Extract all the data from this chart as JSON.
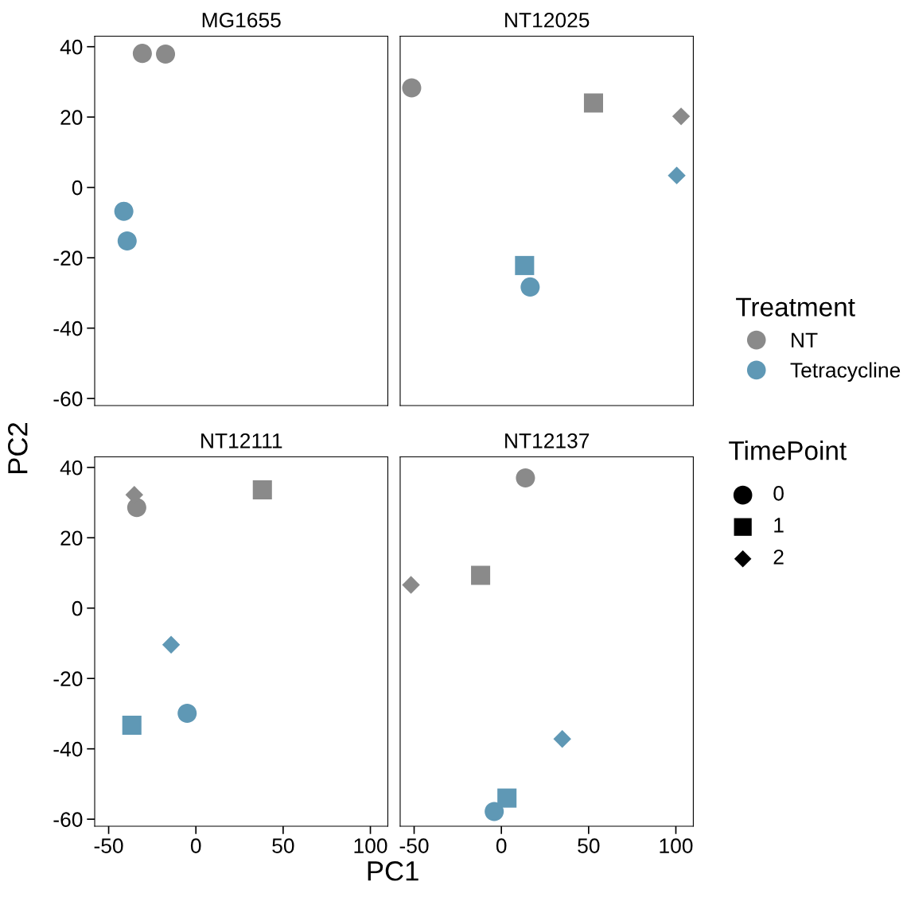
{
  "chart_data": [
    {
      "type": "scatter",
      "title": "MG1655",
      "xlabel": "PC1",
      "ylabel": "PC2",
      "legend": "right",
      "legend_title": "Treatment",
      "annotations": [
        "TimePoint",
        "0",
        "1",
        "2"
      ],
      "xlim": [
        -58,
        110
      ],
      "ylim": [
        -62,
        43
      ],
      "xticks": [
        -50,
        0,
        50,
        100
      ],
      "yticks": [
        -60,
        -40,
        -20,
        0,
        20,
        40
      ],
      "tick_labels": "y",
      "grid": false,
      "series": [
        {
          "name": "NT",
          "color": "#8a8a8a",
          "marker": "circle",
          "x": [
            -30.7,
            -17.4
          ],
          "values": [
            38.1,
            37.9
          ]
        },
        {
          "name": "Tetracycline",
          "color": "#5f98b5",
          "marker": "circle",
          "x": [
            -41.3,
            -39.4
          ],
          "values": [
            -6.8,
            -15.2
          ]
        }
      ]
    },
    {
      "type": "scatter",
      "title": "NT12025",
      "xlim": [
        -58,
        110
      ],
      "ylim": [
        -62,
        43
      ],
      "xticks": [
        -50,
        0,
        50,
        100
      ],
      "yticks": [
        -60,
        -40,
        -20,
        0,
        20,
        40
      ],
      "tick_labels": false,
      "grid": false,
      "series": [
        {
          "color": "#8a8a8a",
          "marker": "circle",
          "x": [
            -51.4
          ],
          "values": [
            28.3
          ]
        },
        {
          "color": "#8a8a8a",
          "marker": "square",
          "x": [
            52.8
          ],
          "values": [
            24
          ]
        },
        {
          "color": "#8a8a8a",
          "marker": "diamond",
          "x": [
            103
          ],
          "values": [
            20.2
          ]
        },
        {
          "color": "#5f98b5",
          "marker": "circle",
          "x": [
            16.5
          ],
          "values": [
            -28.3
          ]
        },
        {
          "color": "#5f98b5",
          "marker": "square",
          "x": [
            13.3
          ],
          "values": [
            -22.2
          ]
        },
        {
          "color": "#5f98b5",
          "marker": "diamond",
          "x": [
            100.5
          ],
          "values": [
            3.4
          ]
        }
      ]
    },
    {
      "type": "scatter",
      "title": "NT12111",
      "xlim": [
        -58,
        110
      ],
      "ylim": [
        -62,
        43
      ],
      "xticks": [
        -50,
        0,
        50,
        100
      ],
      "yticks": [
        -60,
        -40,
        -20,
        0,
        20,
        40
      ],
      "grid": false,
      "series": [
        {
          "color": "#8a8a8a",
          "marker": "circle",
          "x": [
            -33.9
          ],
          "values": [
            28.6
          ]
        },
        {
          "color": "#8a8a8a",
          "marker": "square",
          "x": [
            38.1
          ],
          "values": [
            33.6
          ]
        },
        {
          "color": "#8a8a8a",
          "marker": "diamond",
          "x": [
            -35.3
          ],
          "values": [
            32.2
          ]
        },
        {
          "color": "#5f98b5",
          "marker": "circle",
          "x": [
            -5
          ],
          "values": [
            -29.9
          ]
        },
        {
          "color": "#5f98b5",
          "marker": "square",
          "x": [
            -36.7
          ],
          "values": [
            -33.3
          ]
        },
        {
          "color": "#5f98b5",
          "marker": "diamond",
          "x": [
            -14.2
          ],
          "values": [
            -10.4
          ]
        }
      ]
    },
    {
      "type": "scatter",
      "title": "NT12137",
      "xlim": [
        -58,
        110
      ],
      "ylim": [
        -62,
        43
      ],
      "xticks": [
        -50,
        0,
        50,
        100
      ],
      "yticks": [
        -60,
        -40,
        -20,
        0,
        20,
        40
      ],
      "tick_labels": "x",
      "grid": false,
      "series": [
        {
          "color": "#8a8a8a",
          "marker": "circle",
          "x": [
            13.8
          ],
          "values": [
            37
          ]
        },
        {
          "color": "#8a8a8a",
          "marker": "square",
          "x": [
            -11.9
          ],
          "values": [
            9.3
          ]
        },
        {
          "color": "#8a8a8a",
          "marker": "diamond",
          "x": [
            -51.8
          ],
          "values": [
            6.6
          ]
        },
        {
          "color": "#5f98b5",
          "marker": "circle",
          "x": [
            -4.1
          ],
          "values": [
            -57.8
          ]
        },
        {
          "color": "#5f98b5",
          "marker": "square",
          "x": [
            3.2
          ],
          "values": [
            -54
          ]
        },
        {
          "color": "#5f98b5",
          "marker": "diamond",
          "x": [
            34.9
          ],
          "values": [
            -37.2
          ]
        }
      ]
    }
  ]
}
